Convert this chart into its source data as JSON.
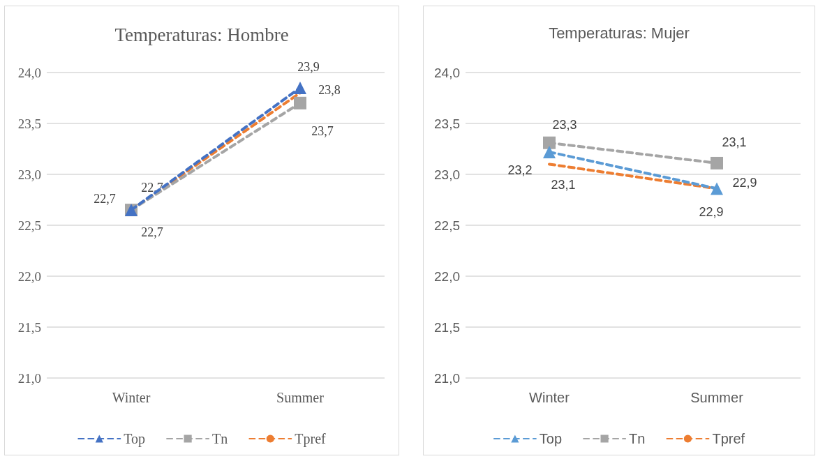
{
  "chart_data": [
    {
      "type": "line",
      "title": "Temperaturas: Hombre",
      "categories": [
        "Winter",
        "Summer"
      ],
      "ylim": [
        21,
        24
      ],
      "yticks": [
        {
          "value": 21,
          "label": "21,0"
        },
        {
          "value": 21.5,
          "label": "21,5"
        },
        {
          "value": 22,
          "label": "22,0"
        },
        {
          "value": 22.5,
          "label": "22,5"
        },
        {
          "value": 23,
          "label": "23,0"
        },
        {
          "value": 23.5,
          "label": "23,5"
        },
        {
          "value": 24,
          "label": "24,0"
        }
      ],
      "grid": "y",
      "legend": "bottom",
      "line_style": "dashed",
      "series": [
        {
          "name": "Top",
          "color": "#4472c4",
          "marker": "triangle",
          "values": [
            22.65,
            23.85
          ],
          "value_labels": [
            "22,7",
            "23,9"
          ]
        },
        {
          "name": "Tn",
          "color": "#a5a5a5",
          "marker": "square",
          "values": [
            22.65,
            23.7
          ],
          "value_labels": [
            "22,7",
            "23,7"
          ]
        },
        {
          "name": "Tpref",
          "color": "#ed7d31",
          "marker": "none",
          "values": [
            22.65,
            23.8
          ],
          "value_labels": [
            "22,7",
            "23,8"
          ]
        }
      ]
    },
    {
      "type": "line",
      "title": "Temperaturas: Mujer",
      "categories": [
        "Winter",
        "Summer"
      ],
      "ylim": [
        21,
        24
      ],
      "yticks": [
        {
          "value": 21,
          "label": "21,0"
        },
        {
          "value": 21.5,
          "label": "21,5"
        },
        {
          "value": 22,
          "label": "22,0"
        },
        {
          "value": 22.5,
          "label": "22,5"
        },
        {
          "value": 23,
          "label": "23,0"
        },
        {
          "value": 23.5,
          "label": "23,5"
        },
        {
          "value": 24,
          "label": "24,0"
        }
      ],
      "grid": "y",
      "legend": "bottom",
      "line_style": "dashed",
      "series": [
        {
          "name": "Top",
          "color": "#5b9bd5",
          "marker": "triangle",
          "values": [
            23.22,
            22.86
          ],
          "value_labels": [
            "23,2",
            "22,9"
          ]
        },
        {
          "name": "Tn",
          "color": "#a5a5a5",
          "marker": "square",
          "values": [
            23.31,
            23.11
          ],
          "value_labels": [
            "23,3",
            "23,1"
          ]
        },
        {
          "name": "Tpref",
          "color": "#ed7d31",
          "marker": "none",
          "values": [
            23.1,
            22.86
          ],
          "value_labels": [
            "23,1",
            "22,9"
          ]
        }
      ]
    }
  ]
}
